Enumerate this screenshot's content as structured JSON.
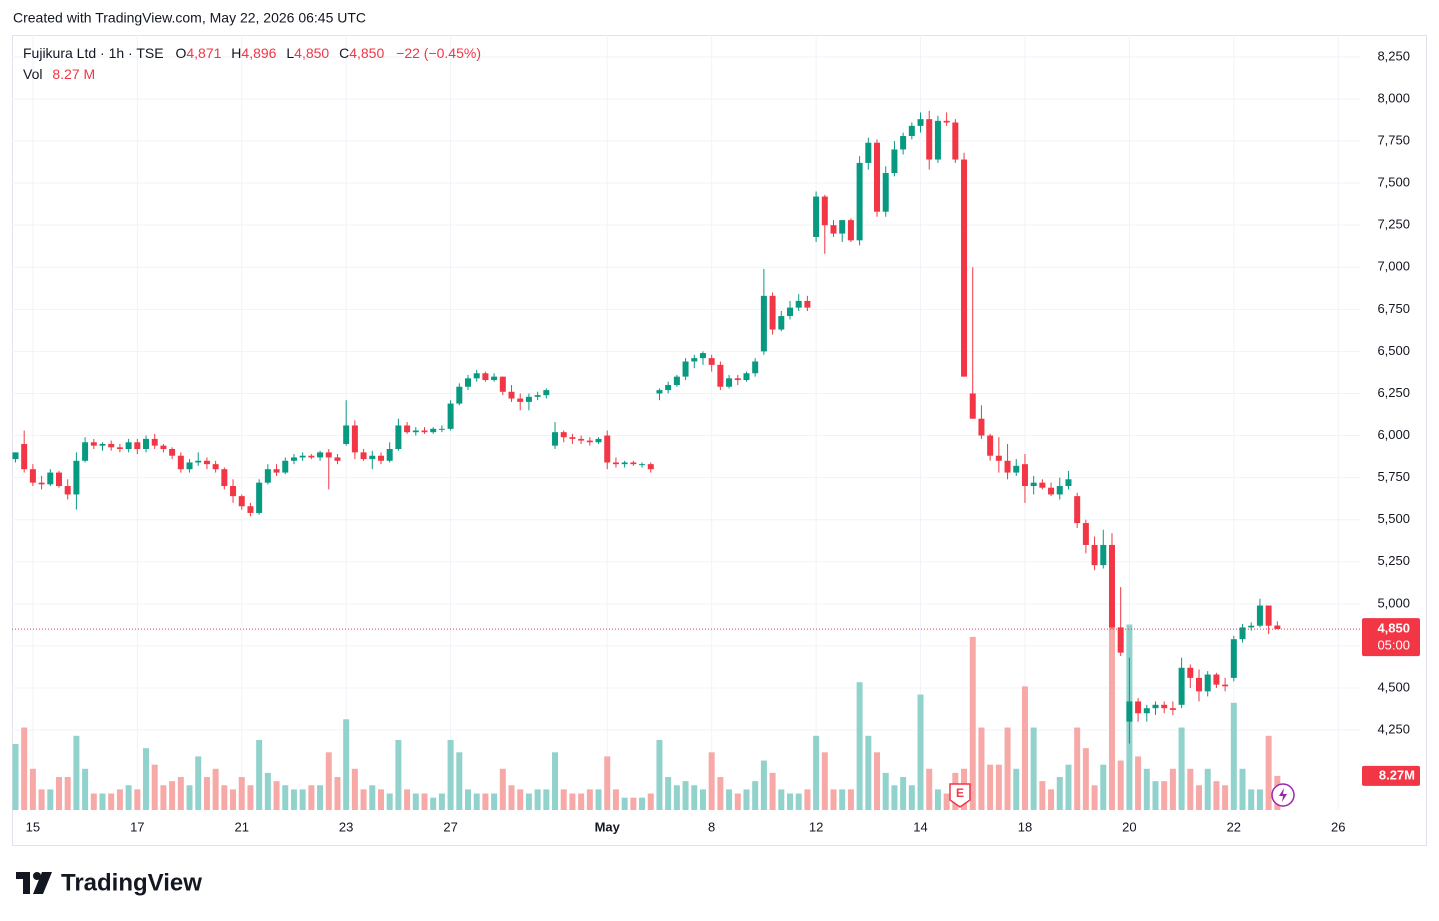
{
  "header": {
    "credit": "Created with TradingView.com, May 22, 2026 06:45 UTC"
  },
  "footer": {
    "brand": "TradingView"
  },
  "chart_data": {
    "type": "candlestick",
    "title": "Fujikura Ltd · 1h · TSE",
    "legend_ohlc": [
      {
        "key": "O",
        "value": "4,871"
      },
      {
        "key": "H",
        "value": "4,896"
      },
      {
        "key": "L",
        "value": "4,850"
      },
      {
        "key": "C",
        "value": "4,850"
      }
    ],
    "legend_change": "−22 (−0.45%)",
    "volume_title": "Vol",
    "volume_value": "8.27 M",
    "last_price_label": "4,850",
    "countdown": "05:00",
    "last_volume_label": "8.27M",
    "earnings_marker": "E",
    "up_color": "#089981",
    "down_color": "#f23645",
    "volume_up_color": "#92d2cc",
    "volume_down_color": "#f7a9a7",
    "grid": true,
    "xlim": [
      -2.4,
      152.5
    ],
    "xticks": [
      {
        "value": 0,
        "label": "15"
      },
      {
        "value": 12,
        "label": "17"
      },
      {
        "value": 24,
        "label": "21"
      },
      {
        "value": 36,
        "label": "23"
      },
      {
        "value": 48,
        "label": "27"
      },
      {
        "value": 66,
        "label": "May"
      },
      {
        "value": 78,
        "label": "8"
      },
      {
        "value": 90,
        "label": "12"
      },
      {
        "value": 102,
        "label": "14"
      },
      {
        "value": 114,
        "label": "18"
      },
      {
        "value": 126,
        "label": "20"
      },
      {
        "value": 138,
        "label": "22"
      },
      {
        "value": 150,
        "label": "26"
      }
    ],
    "ylim": [
      3775,
      8380
    ],
    "yticks": [
      {
        "value": 4250,
        "label": "4,250"
      },
      {
        "value": 4500,
        "label": "4,500"
      },
      {
        "value": 4750,
        "label": "4,750"
      },
      {
        "value": 5000,
        "label": "5,000"
      },
      {
        "value": 5250,
        "label": "5,250"
      },
      {
        "value": 5500,
        "label": "5,500"
      },
      {
        "value": 5750,
        "label": "5,750"
      },
      {
        "value": 6000,
        "label": "6,000"
      },
      {
        "value": 6250,
        "label": "6,250"
      },
      {
        "value": 6500,
        "label": "6,500"
      },
      {
        "value": 6750,
        "label": "6,750"
      },
      {
        "value": 7000,
        "label": "7,000"
      },
      {
        "value": 7250,
        "label": "7,250"
      },
      {
        "value": 7500,
        "label": "7,500"
      },
      {
        "value": 7750,
        "label": "7,750"
      },
      {
        "value": 8000,
        "label": "8,000"
      },
      {
        "value": 8250,
        "label": "8,250"
      }
    ],
    "y2lim": [
      0,
      188
    ],
    "x": [
      -2,
      -1,
      0,
      1,
      2,
      3,
      4,
      5,
      6,
      7,
      8,
      9,
      10,
      11,
      12,
      13,
      14,
      15,
      16,
      17,
      18,
      19,
      20,
      21,
      22,
      23,
      24,
      25,
      26,
      27,
      28,
      29,
      30,
      31,
      32,
      33,
      34,
      35,
      36,
      37,
      38,
      39,
      40,
      41,
      42,
      43,
      44,
      45,
      46,
      47,
      48,
      49,
      50,
      51,
      52,
      53,
      54,
      55,
      56,
      57,
      58,
      59,
      60,
      61,
      62,
      63,
      64,
      65,
      66,
      67,
      68,
      69,
      70,
      71,
      72,
      73,
      74,
      75,
      76,
      77,
      78,
      79,
      80,
      81,
      82,
      83,
      84,
      85,
      86,
      87,
      88,
      89,
      90,
      91,
      92,
      93,
      94,
      95,
      96,
      97,
      98,
      99,
      100,
      101,
      102,
      103,
      104,
      105,
      106,
      107,
      108,
      109,
      110,
      111,
      112,
      113,
      114,
      115,
      116,
      117,
      118,
      119,
      120,
      121,
      122,
      123,
      124,
      125,
      126,
      127,
      128,
      129,
      130,
      131,
      132,
      133,
      134,
      135,
      136,
      137,
      138,
      139,
      140,
      141,
      142,
      143
    ],
    "open": [
      5860,
      5950,
      5800,
      5720,
      5710,
      5780,
      5700,
      5650,
      5850,
      5960,
      5940,
      5950,
      5930,
      5920,
      5960,
      5920,
      5980,
      5940,
      5920,
      5880,
      5800,
      5840,
      5850,
      5830,
      5800,
      5700,
      5640,
      5580,
      5540,
      5720,
      5800,
      5780,
      5850,
      5870,
      5880,
      5870,
      5900,
      5870,
      5950,
      6060,
      5900,
      5860,
      5880,
      5850,
      5920,
      6060,
      6020,
      6030,
      6020,
      6040,
      6040,
      6190,
      6290,
      6340,
      6370,
      6330,
      6350,
      6260,
      6220,
      6200,
      6230,
      6240,
      5940,
      6020,
      5990,
      5980,
      5970,
      5960,
      6000,
      5840,
      5830,
      5840,
      5830,
      5830,
      6250,
      6270,
      6300,
      6350,
      6440,
      6460,
      6460,
      6420,
      6290,
      6340,
      6330,
      6370,
      6500,
      6830,
      6630,
      6710,
      6760,
      6800,
      7180,
      7420,
      7250,
      7200,
      7280,
      7160,
      7620,
      7740,
      7330,
      7560,
      7700,
      7780,
      7840,
      7880,
      7640,
      7870,
      7860,
      7640,
      6250,
      6100,
      6000,
      5880,
      5850,
      5780,
      5830,
      5700,
      5720,
      5690,
      5650,
      5700,
      5640,
      5480,
      5350,
      5230,
      5350,
      4860,
      4300,
      4420,
      4350,
      4380,
      4400,
      4380,
      4400,
      4620,
      4560,
      4480,
      4580,
      4520,
      4560,
      4790,
      4860,
      4870,
      4990,
      4871
    ],
    "high": [
      5900,
      6030,
      5830,
      5760,
      5800,
      5790,
      5740,
      5900,
      5990,
      5980,
      5960,
      5970,
      5950,
      5980,
      5980,
      6000,
      6010,
      5950,
      5930,
      5900,
      5860,
      5900,
      5870,
      5850,
      5810,
      5740,
      5650,
      5600,
      5740,
      5830,
      5830,
      5870,
      5890,
      5900,
      5890,
      5910,
      5920,
      5890,
      6210,
      6090,
      5920,
      5910,
      5900,
      5960,
      6100,
      6080,
      6050,
      6050,
      6050,
      6060,
      6210,
      6310,
      6360,
      6390,
      6380,
      6370,
      6350,
      6300,
      6250,
      6250,
      6260,
      6280,
      6080,
      6030,
      6010,
      6000,
      5990,
      5990,
      6030,
      5870,
      5850,
      5850,
      5840,
      5840,
      6280,
      6320,
      6360,
      6460,
      6480,
      6500,
      6480,
      6440,
      6360,
      6360,
      6380,
      6460,
      6990,
      6850,
      6740,
      6800,
      6840,
      6830,
      7450,
      7430,
      7280,
      7280,
      7290,
      7660,
      7770,
      7760,
      7600,
      7750,
      7800,
      7860,
      7920,
      7930,
      7900,
      7920,
      7880,
      7680,
      7000,
      6180,
      6010,
      5990,
      5950,
      5860,
      5890,
      5760,
      5740,
      5720,
      5750,
      5790,
      5660,
      5500,
      5400,
      5440,
      5420,
      5100,
      4680,
      4440,
      4400,
      4420,
      4420,
      4420,
      4680,
      4640,
      4610,
      4600,
      4590,
      4560,
      4810,
      4880,
      4890,
      5030,
      4990,
      4896
    ],
    "low": [
      5840,
      5780,
      5700,
      5680,
      5700,
      5690,
      5620,
      5560,
      5840,
      5920,
      5910,
      5910,
      5900,
      5900,
      5890,
      5900,
      5920,
      5900,
      5860,
      5780,
      5780,
      5820,
      5800,
      5780,
      5680,
      5600,
      5560,
      5520,
      5530,
      5710,
      5760,
      5770,
      5830,
      5850,
      5860,
      5850,
      5680,
      5830,
      5940,
      5860,
      5850,
      5800,
      5830,
      5840,
      5910,
      6010,
      6000,
      6010,
      6010,
      6020,
      6030,
      6180,
      6270,
      6320,
      6320,
      6320,
      6240,
      6200,
      6150,
      6150,
      6210,
      6220,
      5920,
      5960,
      5950,
      5950,
      5940,
      5950,
      5800,
      5810,
      5810,
      5820,
      5810,
      5780,
      6210,
      6250,
      6290,
      6330,
      6400,
      6420,
      6380,
      6270,
      6280,
      6300,
      6320,
      6350,
      6480,
      6600,
      6620,
      6690,
      6740,
      6740,
      7150,
      7080,
      7180,
      7150,
      7150,
      7130,
      7580,
      7300,
      7300,
      7540,
      7670,
      7760,
      7800,
      7580,
      7620,
      7840,
      7620,
      6350,
      6100,
      5980,
      5850,
      5780,
      5740,
      5760,
      5600,
      5650,
      5680,
      5640,
      5620,
      5680,
      5450,
      5300,
      5200,
      5210,
      4850,
      4690,
      4170,
      4300,
      4300,
      4340,
      4350,
      4340,
      4380,
      4500,
      4420,
      4450,
      4500,
      4480,
      4540,
      4770,
      4840,
      4860,
      4820,
      4850
    ],
    "close": [
      5900,
      5800,
      5720,
      5710,
      5780,
      5700,
      5650,
      5850,
      5960,
      5940,
      5950,
      5930,
      5920,
      5960,
      5920,
      5980,
      5940,
      5920,
      5880,
      5800,
      5840,
      5850,
      5830,
      5800,
      5700,
      5640,
      5580,
      5540,
      5720,
      5800,
      5780,
      5850,
      5870,
      5880,
      5870,
      5900,
      5870,
      5850,
      6060,
      5900,
      5860,
      5880,
      5850,
      5920,
      6060,
      6020,
      6030,
      6020,
      6040,
      6040,
      6190,
      6290,
      6340,
      6370,
      6330,
      6350,
      6260,
      6220,
      6200,
      6230,
      6240,
      6270,
      6020,
      5990,
      5980,
      5970,
      5960,
      5980,
      5840,
      5830,
      5840,
      5830,
      5830,
      5800,
      6270,
      6300,
      6350,
      6440,
      6460,
      6490,
      6420,
      6290,
      6340,
      6330,
      6370,
      6440,
      6830,
      6630,
      6710,
      6760,
      6800,
      6760,
      7420,
      7250,
      7200,
      7280,
      7160,
      7620,
      7740,
      7330,
      7560,
      7700,
      7780,
      7840,
      7880,
      7640,
      7870,
      7860,
      7640,
      6350,
      6100,
      6000,
      5880,
      5850,
      5780,
      5820,
      5700,
      5720,
      5690,
      5650,
      5700,
      5740,
      5480,
      5350,
      5230,
      5350,
      4860,
      4710,
      4420,
      4350,
      4380,
      4400,
      4380,
      4370,
      4620,
      4560,
      4480,
      4580,
      4520,
      4510,
      4790,
      4860,
      4870,
      4990,
      4870,
      4850
    ],
    "volume": [
      16,
      20,
      10,
      5,
      5,
      8,
      8,
      18,
      10,
      4,
      4,
      4,
      5,
      6,
      5,
      15,
      11,
      6,
      7,
      8,
      6,
      13,
      8,
      10,
      6,
      5,
      8,
      6,
      17,
      9,
      7,
      6,
      5,
      5,
      6,
      6,
      14,
      8,
      22,
      10,
      5,
      6,
      5,
      4,
      17,
      5,
      4,
      4,
      3,
      4,
      17,
      14,
      5,
      4,
      4,
      4,
      10,
      6,
      5,
      4,
      5,
      5,
      14,
      5,
      4,
      4,
      5,
      5,
      13,
      5,
      3,
      3,
      3,
      4,
      17,
      8,
      6,
      7,
      6,
      5,
      14,
      8,
      5,
      4,
      5,
      7,
      12,
      9,
      5,
      4,
      4,
      5,
      18,
      14,
      5,
      5,
      5,
      31,
      18,
      14,
      9,
      6,
      8,
      6,
      28,
      10,
      5,
      4,
      9,
      10,
      42,
      20,
      11,
      11,
      20,
      10,
      30,
      20,
      7,
      5,
      8,
      11,
      20,
      15,
      6,
      11,
      48,
      12,
      45,
      13,
      10,
      7,
      7,
      10,
      20,
      10,
      6,
      10,
      7,
      6,
      26,
      10,
      5,
      5,
      18,
      8.27
    ]
  }
}
